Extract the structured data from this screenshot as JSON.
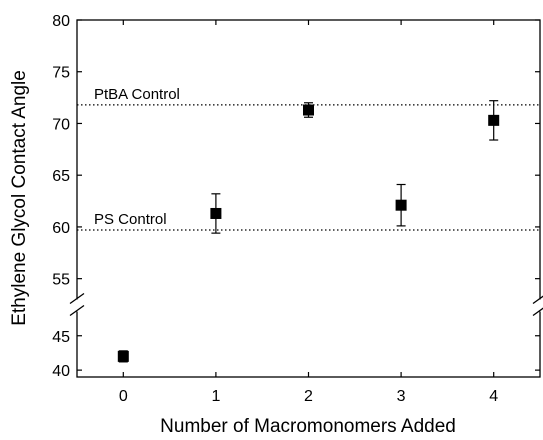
{
  "chart_data": {
    "type": "scatter",
    "title": "",
    "xlabel": "Number of Macromonomers Added",
    "ylabel": "Ethylene Glycol Contact Angle",
    "xlim": [
      -0.5,
      4.5
    ],
    "x_ticks": [
      "0",
      "1",
      "2",
      "3",
      "4"
    ],
    "y_axis_break": {
      "between": [
        47,
        54
      ]
    },
    "y_ticks_lower": [
      "40",
      "45"
    ],
    "y_ticks_upper": [
      "55",
      "60",
      "65",
      "70",
      "75",
      "80"
    ],
    "ylim_lower": [
      39,
      47
    ],
    "ylim_upper": [
      54,
      80
    ],
    "grid": false,
    "marker": "square",
    "color": "#000000",
    "points": [
      {
        "x": 0,
        "y": 42.0,
        "err": 0.8
      },
      {
        "x": 1,
        "y": 61.3,
        "err": 1.9
      },
      {
        "x": 2,
        "y": 71.3,
        "err": 0.7
      },
      {
        "x": 3,
        "y": 62.1,
        "err": 2.0
      },
      {
        "x": 4,
        "y": 70.3,
        "err": 1.9
      }
    ],
    "reference_lines": [
      {
        "label": "PtBA Control",
        "y": 71.8
      },
      {
        "label": "PS Control",
        "y": 59.7
      }
    ]
  }
}
